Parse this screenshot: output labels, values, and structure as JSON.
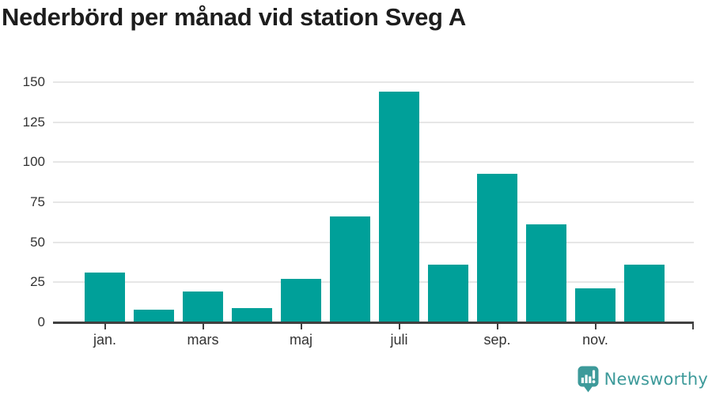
{
  "header": {
    "title": "Nederbörd per månad vid station Sveg A"
  },
  "chart_data": {
    "type": "bar",
    "title": "Nederbörd per månad vid station Sveg A",
    "n_bars": 12,
    "values": [
      31,
      8,
      19,
      9,
      27,
      66,
      144,
      36,
      93,
      61,
      21,
      36
    ],
    "x_tick_labels": [
      "jan.",
      "mars",
      "maj",
      "juli",
      "sep.",
      "nov."
    ],
    "x_tick_bar_indices": [
      0,
      2,
      4,
      6,
      8,
      10
    ],
    "y_tick_labels": [
      "0",
      "25",
      "50",
      "75",
      "100",
      "125",
      "150"
    ],
    "y_tick_values": [
      0,
      25,
      50,
      75,
      100,
      125,
      150
    ],
    "ylim": [
      0,
      150
    ],
    "grid": true,
    "legend": false,
    "bar_color": "#00a099",
    "gridline_color": "#e6e6e6",
    "axis_color": "#404040",
    "tick_label_color": "#333333"
  },
  "footer": {
    "logo_text": "Newsworthy",
    "logo_color": "#3d9a9a",
    "logo_icon": "bar-chart-speech-bubble-icon"
  }
}
